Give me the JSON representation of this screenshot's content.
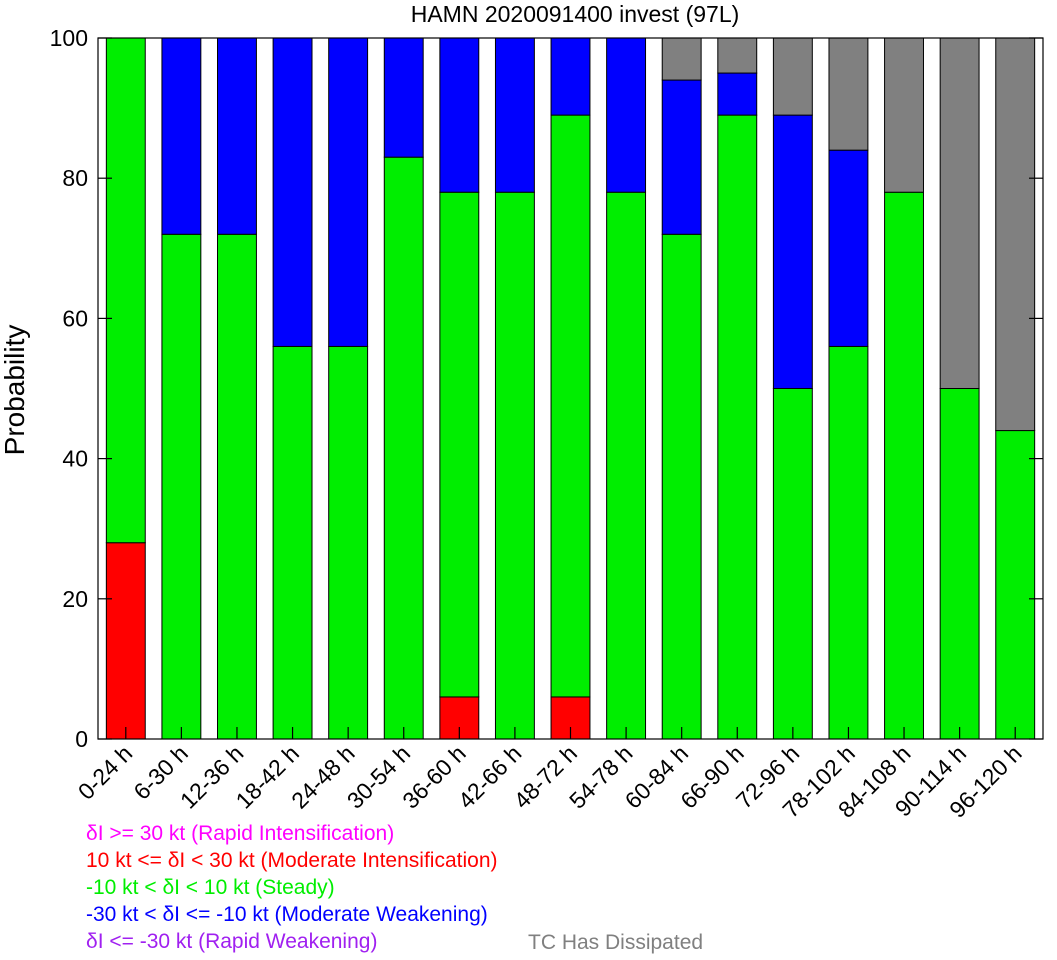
{
  "chart_data": {
    "type": "bar",
    "stacked": true,
    "title": "HAMN 2020091400 invest (97L)",
    "ylabel": "Probability",
    "ylim": [
      0,
      100
    ],
    "yticks": [
      "0",
      "20",
      "40",
      "60",
      "80",
      "100"
    ],
    "categories": [
      "0-24 h",
      "6-30 h",
      "12-36 h",
      "18-42 h",
      "24-48 h",
      "30-54 h",
      "36-60 h",
      "42-66 h",
      "48-72 h",
      "54-78 h",
      "60-84 h",
      "66-90 h",
      "72-96 h",
      "78-102 h",
      "84-108 h",
      "90-114 h",
      "96-120 h"
    ],
    "series": [
      {
        "key": "ri",
        "color": "#ff00ff",
        "values": [
          0,
          0,
          0,
          0,
          0,
          0,
          0,
          0,
          0,
          0,
          0,
          0,
          0,
          0,
          0,
          0,
          0
        ]
      },
      {
        "key": "mi",
        "color": "#ff0000",
        "values": [
          28,
          0,
          0,
          0,
          0,
          0,
          6,
          0,
          6,
          0,
          0,
          0,
          0,
          0,
          0,
          0,
          0
        ]
      },
      {
        "key": "steady",
        "color": "#00ee00",
        "values": [
          72,
          72,
          72,
          56,
          56,
          83,
          72,
          78,
          83,
          78,
          72,
          89,
          50,
          56,
          78,
          50,
          44
        ]
      },
      {
        "key": "mw",
        "color": "#0000ff",
        "values": [
          0,
          28,
          28,
          44,
          44,
          17,
          22,
          22,
          11,
          22,
          22,
          6,
          39,
          28,
          0,
          0,
          0
        ]
      },
      {
        "key": "rw",
        "color": "#a020f0",
        "values": [
          0,
          0,
          0,
          0,
          0,
          0,
          0,
          0,
          0,
          0,
          0,
          0,
          0,
          0,
          0,
          0,
          0
        ]
      },
      {
        "key": "dissipated",
        "color": "#808080",
        "values": [
          0,
          0,
          0,
          0,
          0,
          0,
          0,
          0,
          0,
          0,
          6,
          5,
          11,
          16,
          22,
          50,
          56
        ]
      }
    ],
    "legend": {
      "ri": {
        "text": "δI >= 30 kt (Rapid Intensification)",
        "color": "#ff00ff"
      },
      "mi": {
        "text": "10 kt <= δI < 30 kt (Moderate Intensification)",
        "color": "#ff0000"
      },
      "steady": {
        "text": "-10 kt < δI < 10 kt (Steady)",
        "color": "#00ee00"
      },
      "mw": {
        "text": "-30 kt < δI <= -10 kt (Moderate Weakening)",
        "color": "#0000ff"
      },
      "rw": {
        "text": "δI <= -30 kt (Rapid Weakening)",
        "color": "#a020f0"
      },
      "dissipated": {
        "text": "TC Has Dissipated",
        "color": "#808080"
      }
    }
  }
}
